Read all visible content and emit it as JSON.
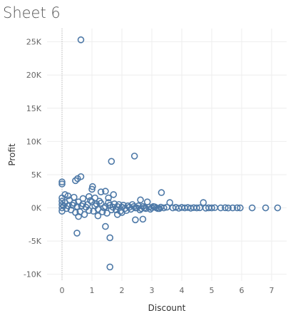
{
  "sheet": {
    "title": "Sheet 6"
  },
  "colors": {
    "marker": "#4e79a7",
    "grid": "#eeeeee",
    "zero_line": "#b0b0b0",
    "tick_text": "#666666",
    "title_text": "#555555"
  },
  "chart_data": {
    "type": "scatter",
    "title": "",
    "xlabel": "Discount",
    "ylabel": "Profit",
    "xlim": [
      -0.5,
      7.5
    ],
    "ylim": [
      -11000,
      27000
    ],
    "x_ticks": [
      0,
      1,
      2,
      3,
      4,
      5,
      6,
      7
    ],
    "x_tick_labels": [
      "0",
      "1",
      "2",
      "3",
      "4",
      "5",
      "6",
      "7"
    ],
    "y_ticks": [
      -10000,
      -5000,
      0,
      5000,
      10000,
      15000,
      20000,
      25000
    ],
    "y_tick_labels": [
      "-10K",
      "-5K",
      "0K",
      "5K",
      "10K",
      "15K",
      "20K",
      "25K"
    ],
    "grid": true,
    "marker": "hollow-circle",
    "points": [
      [
        0.63,
        25300
      ],
      [
        1.65,
        7000
      ],
      [
        2.42,
        7800
      ],
      [
        0.63,
        4700
      ],
      [
        0.0,
        3900
      ],
      [
        0.0,
        3600
      ],
      [
        0.45,
        4100
      ],
      [
        0.52,
        4400
      ],
      [
        1.02,
        3200
      ],
      [
        1.0,
        2800
      ],
      [
        1.3,
        2400
      ],
      [
        1.45,
        2500
      ],
      [
        1.72,
        2000
      ],
      [
        3.32,
        2300
      ],
      [
        3.6,
        800
      ],
      [
        2.62,
        1200
      ],
      [
        2.85,
        900
      ],
      [
        4.72,
        800
      ],
      [
        0.1,
        2000
      ],
      [
        0.2,
        1800
      ],
      [
        0.4,
        1600
      ],
      [
        0.7,
        1400
      ],
      [
        0.9,
        1700
      ],
      [
        1.1,
        1500
      ],
      [
        1.55,
        1500
      ],
      [
        0.5,
        -3800
      ],
      [
        1.45,
        -2800
      ],
      [
        1.6,
        -4500
      ],
      [
        1.6,
        -8900
      ],
      [
        2.45,
        -1800
      ],
      [
        2.7,
        -1700
      ],
      [
        0.55,
        -1300
      ],
      [
        1.2,
        -1200
      ],
      [
        1.85,
        -1000
      ],
      [
        2.0,
        -700
      ],
      [
        0.0,
        1000
      ],
      [
        0.0,
        500
      ],
      [
        0.0,
        0
      ],
      [
        0.0,
        -500
      ],
      [
        0.0,
        1500
      ],
      [
        0.1,
        800
      ],
      [
        0.2,
        300
      ],
      [
        0.3,
        -300
      ],
      [
        0.4,
        700
      ],
      [
        0.5,
        200
      ],
      [
        0.6,
        -600
      ],
      [
        0.7,
        600
      ],
      [
        0.8,
        100
      ],
      [
        0.9,
        -400
      ],
      [
        1.0,
        900
      ],
      [
        1.1,
        300
      ],
      [
        1.2,
        -200
      ],
      [
        1.3,
        700
      ],
      [
        1.4,
        0
      ],
      [
        1.5,
        -800
      ],
      [
        1.6,
        400
      ],
      [
        1.7,
        100
      ],
      [
        1.8,
        -300
      ],
      [
        1.9,
        500
      ],
      [
        2.0,
        100
      ],
      [
        2.1,
        -100
      ],
      [
        2.2,
        300
      ],
      [
        2.3,
        -200
      ],
      [
        2.4,
        200
      ],
      [
        2.5,
        0
      ],
      [
        2.6,
        -300
      ],
      [
        2.7,
        200
      ],
      [
        2.8,
        -100
      ],
      [
        2.9,
        100
      ],
      [
        3.0,
        0
      ],
      [
        3.1,
        150
      ],
      [
        3.2,
        -100
      ],
      [
        3.3,
        100
      ],
      [
        3.4,
        0
      ],
      [
        3.5,
        100
      ],
      [
        3.7,
        0
      ],
      [
        3.8,
        80
      ],
      [
        3.9,
        -50
      ],
      [
        4.0,
        60
      ],
      [
        4.1,
        0
      ],
      [
        4.2,
        50
      ],
      [
        4.3,
        -40
      ],
      [
        4.4,
        30
      ],
      [
        4.5,
        0
      ],
      [
        4.6,
        20
      ],
      [
        4.8,
        -30
      ],
      [
        4.9,
        10
      ],
      [
        5.0,
        0
      ],
      [
        5.1,
        30
      ],
      [
        5.3,
        0
      ],
      [
        5.45,
        20
      ],
      [
        5.55,
        -20
      ],
      [
        5.7,
        0
      ],
      [
        5.85,
        10
      ],
      [
        5.95,
        0
      ],
      [
        6.35,
        0
      ],
      [
        6.8,
        0
      ],
      [
        7.2,
        0
      ],
      [
        0.05,
        300
      ],
      [
        0.15,
        -100
      ],
      [
        0.25,
        1200
      ],
      [
        0.35,
        400
      ],
      [
        0.45,
        -700
      ],
      [
        0.55,
        900
      ],
      [
        0.65,
        300
      ],
      [
        0.75,
        -1000
      ],
      [
        0.85,
        500
      ],
      [
        0.95,
        1100
      ],
      [
        1.05,
        -500
      ],
      [
        1.15,
        600
      ],
      [
        1.25,
        1000
      ],
      [
        1.35,
        -600
      ],
      [
        1.45,
        200
      ],
      [
        1.55,
        800
      ],
      [
        1.65,
        -300
      ],
      [
        1.75,
        600
      ],
      [
        1.85,
        200
      ],
      [
        1.95,
        -500
      ],
      [
        2.05,
        400
      ],
      [
        2.15,
        -400
      ],
      [
        2.25,
        100
      ],
      [
        2.35,
        500
      ],
      [
        2.45,
        0
      ],
      [
        2.55,
        300
      ],
      [
        2.65,
        -100
      ],
      [
        2.75,
        0
      ],
      [
        2.95,
        -200
      ],
      [
        3.05,
        200
      ],
      [
        3.15,
        0
      ],
      [
        3.25,
        -100
      ]
    ]
  }
}
